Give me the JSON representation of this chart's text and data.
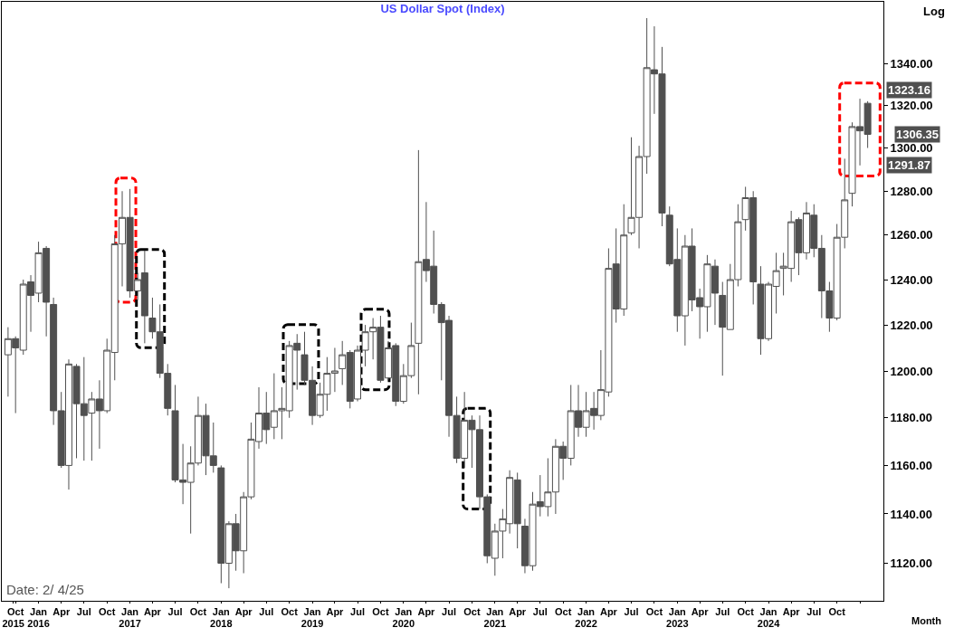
{
  "chart_data": {
    "type": "candlestick",
    "title": "US Dollar Spot (Index)",
    "xlabel": "Month",
    "ylabel": "Log",
    "color": "#505050",
    "log": true,
    "x": [
      "2015-09",
      "2015-10",
      "2015-11",
      "2015-12",
      "2016-01",
      "2016-02",
      "2016-03",
      "2016-04",
      "2016-05",
      "2016-06",
      "2016-07",
      "2016-08",
      "2016-09",
      "2016-10",
      "2016-11",
      "2016-12",
      "2017-01",
      "2017-02",
      "2017-03",
      "2017-04",
      "2017-05",
      "2017-06",
      "2017-07",
      "2017-08",
      "2017-09",
      "2017-10",
      "2017-11",
      "2017-12",
      "2018-01",
      "2018-02",
      "2018-03",
      "2018-04",
      "2018-05",
      "2018-06",
      "2018-07",
      "2018-08",
      "2018-09",
      "2018-10",
      "2018-11",
      "2018-12",
      "2019-01",
      "2019-02",
      "2019-03",
      "2019-04",
      "2019-05",
      "2019-06",
      "2019-07",
      "2019-08",
      "2019-09",
      "2019-10",
      "2019-11",
      "2019-12",
      "2020-01",
      "2020-02",
      "2020-03",
      "2020-04",
      "2020-05",
      "2020-06",
      "2020-07",
      "2020-08",
      "2020-09",
      "2020-10",
      "2020-11",
      "2020-12",
      "2021-01",
      "2021-02",
      "2021-03",
      "2021-04",
      "2021-05",
      "2021-06",
      "2021-07",
      "2021-08",
      "2021-09",
      "2021-10",
      "2021-11",
      "2021-12",
      "2022-01",
      "2022-02",
      "2022-03",
      "2022-04",
      "2022-05",
      "2022-06",
      "2022-07",
      "2022-08",
      "2022-09",
      "2022-10",
      "2022-11",
      "2022-12",
      "2023-01",
      "2023-02",
      "2023-03",
      "2023-04",
      "2023-05",
      "2023-06",
      "2023-07",
      "2023-08",
      "2023-09",
      "2023-10",
      "2023-11",
      "2023-12",
      "2024-01",
      "2024-02",
      "2024-03",
      "2024-04",
      "2024-05",
      "2024-06",
      "2024-07",
      "2024-08",
      "2024-09",
      "2024-10",
      "2024-11",
      "2024-12",
      "2025-01",
      "2025-02"
    ],
    "ohlc": [
      [
        1207,
        1219,
        1189,
        1214
      ],
      [
        1214,
        1215,
        1182,
        1210
      ],
      [
        1209,
        1240,
        1207,
        1238
      ],
      [
        1239,
        1242,
        1217,
        1233
      ],
      [
        1234,
        1257,
        1230,
        1252
      ],
      [
        1254,
        1255,
        1215,
        1230
      ],
      [
        1229,
        1232,
        1177,
        1183
      ],
      [
        1183,
        1191,
        1159,
        1160
      ],
      [
        1160,
        1205,
        1150,
        1203
      ],
      [
        1202,
        1203,
        1163,
        1186
      ],
      [
        1186,
        1206,
        1162,
        1181
      ],
      [
        1182,
        1191,
        1162,
        1188
      ],
      [
        1188,
        1196,
        1167,
        1183
      ],
      [
        1183,
        1214,
        1182,
        1209
      ],
      [
        1208,
        1260,
        1196,
        1256
      ],
      [
        1256,
        1280,
        1237,
        1268
      ],
      [
        1268,
        1281,
        1232,
        1235
      ],
      [
        1235,
        1243,
        1231,
        1240
      ],
      [
        1243,
        1253,
        1212,
        1224
      ],
      [
        1223,
        1232,
        1214,
        1217
      ],
      [
        1217,
        1229,
        1197,
        1199
      ],
      [
        1199,
        1203,
        1181,
        1184
      ],
      [
        1183,
        1194,
        1153,
        1154
      ],
      [
        1154,
        1169,
        1144,
        1153
      ],
      [
        1153,
        1168,
        1132,
        1161
      ],
      [
        1161,
        1189,
        1160,
        1181
      ],
      [
        1181,
        1186,
        1156,
        1164
      ],
      [
        1164,
        1178,
        1157,
        1160
      ],
      [
        1159,
        1160,
        1112,
        1120
      ],
      [
        1120,
        1137,
        1110,
        1136
      ],
      [
        1136,
        1140,
        1117,
        1125
      ],
      [
        1125,
        1149,
        1116,
        1147
      ],
      [
        1147,
        1178,
        1146,
        1171
      ],
      [
        1170,
        1193,
        1167,
        1182
      ],
      [
        1182,
        1191,
        1169,
        1175
      ],
      [
        1176,
        1199,
        1171,
        1183
      ],
      [
        1183,
        1193,
        1171,
        1184
      ],
      [
        1183,
        1213,
        1180,
        1211
      ],
      [
        1212,
        1216,
        1192,
        1209
      ],
      [
        1207,
        1217,
        1194,
        1196
      ],
      [
        1196,
        1202,
        1177,
        1181
      ],
      [
        1181,
        1195,
        1180,
        1190
      ],
      [
        1190,
        1206,
        1183,
        1199
      ],
      [
        1199,
        1210,
        1191,
        1200
      ],
      [
        1201,
        1213,
        1194,
        1207
      ],
      [
        1208,
        1209,
        1184,
        1187
      ],
      [
        1188,
        1211,
        1187,
        1209
      ],
      [
        1209,
        1220,
        1202,
        1217
      ],
      [
        1217,
        1223,
        1205,
        1219
      ],
      [
        1219,
        1224,
        1195,
        1196
      ],
      [
        1197,
        1213,
        1196,
        1210
      ],
      [
        1211,
        1212,
        1185,
        1187
      ],
      [
        1187,
        1203,
        1186,
        1198
      ],
      [
        1198,
        1221,
        1197,
        1211
      ],
      [
        1212,
        1299,
        1190,
        1248
      ],
      [
        1249,
        1275,
        1239,
        1244
      ],
      [
        1246,
        1262,
        1225,
        1229
      ],
      [
        1229,
        1230,
        1196,
        1221
      ],
      [
        1222,
        1224,
        1172,
        1181
      ],
      [
        1181,
        1189,
        1161,
        1163
      ],
      [
        1163,
        1191,
        1159,
        1179
      ],
      [
        1179,
        1181,
        1159,
        1175
      ],
      [
        1175,
        1181,
        1142,
        1147
      ],
      [
        1147,
        1148,
        1120,
        1123
      ],
      [
        1122,
        1136,
        1115,
        1133
      ],
      [
        1133,
        1142,
        1122,
        1138
      ],
      [
        1136,
        1158,
        1132,
        1155
      ],
      [
        1154,
        1157,
        1126,
        1136
      ],
      [
        1135,
        1138,
        1116,
        1119
      ],
      [
        1119,
        1149,
        1117,
        1144
      ],
      [
        1145,
        1156,
        1139,
        1143
      ],
      [
        1143,
        1163,
        1139,
        1149
      ],
      [
        1149,
        1171,
        1140,
        1168
      ],
      [
        1168,
        1170,
        1154,
        1163
      ],
      [
        1163,
        1194,
        1160,
        1183
      ],
      [
        1183,
        1194,
        1172,
        1176
      ],
      [
        1176,
        1191,
        1172,
        1183
      ],
      [
        1184,
        1191,
        1175,
        1181
      ],
      [
        1181,
        1209,
        1179,
        1192
      ],
      [
        1191,
        1254,
        1189,
        1245
      ],
      [
        1247,
        1263,
        1221,
        1227
      ],
      [
        1227,
        1274,
        1224,
        1260
      ],
      [
        1261,
        1305,
        1260,
        1268
      ],
      [
        1268,
        1301,
        1254,
        1296
      ],
      [
        1296,
        1362,
        1288,
        1338
      ],
      [
        1337,
        1358,
        1316,
        1335
      ],
      [
        1335,
        1348,
        1264,
        1270
      ],
      [
        1269,
        1273,
        1246,
        1247
      ],
      [
        1249,
        1263,
        1217,
        1224
      ],
      [
        1224,
        1260,
        1211,
        1255
      ],
      [
        1255,
        1263,
        1226,
        1231
      ],
      [
        1232,
        1236,
        1214,
        1228
      ],
      [
        1228,
        1251,
        1217,
        1247
      ],
      [
        1246,
        1249,
        1220,
        1234
      ],
      [
        1233,
        1239,
        1198,
        1219
      ],
      [
        1218,
        1247,
        1218,
        1240
      ],
      [
        1240,
        1274,
        1237,
        1266
      ],
      [
        1267,
        1282,
        1262,
        1277
      ],
      [
        1277,
        1280,
        1229,
        1239
      ],
      [
        1238,
        1246,
        1207,
        1214
      ],
      [
        1214,
        1239,
        1213,
        1238
      ],
      [
        1237,
        1252,
        1225,
        1244
      ],
      [
        1245,
        1252,
        1233,
        1246
      ],
      [
        1245,
        1271,
        1239,
        1266
      ],
      [
        1267,
        1268,
        1242,
        1252
      ],
      [
        1252,
        1275,
        1249,
        1270
      ],
      [
        1269,
        1274,
        1250,
        1254
      ],
      [
        1254,
        1260,
        1223,
        1235
      ],
      [
        1235,
        1239,
        1217,
        1223
      ],
      [
        1223,
        1265,
        1222,
        1259
      ],
      [
        1259,
        1295,
        1254,
        1276
      ],
      [
        1279,
        1312,
        1273,
        1310
      ],
      [
        1310,
        1323.16,
        1291.87,
        1308
      ],
      [
        1321,
        1322,
        1300,
        1306.35
      ]
    ],
    "xlim": [
      "2015-08-07",
      "2025-04-05"
    ],
    "ylim": [
      1105,
      1370
    ],
    "xticks": [
      {
        "value": "2015-10",
        "label": "Oct"
      },
      {
        "value": "2016-01",
        "label": "Jan"
      },
      {
        "value": "2016-04",
        "label": "Apr"
      },
      {
        "value": "2016-07",
        "label": "Jul"
      },
      {
        "value": "2016-10",
        "label": "Oct"
      },
      {
        "value": "2017-01",
        "label": "Jan"
      },
      {
        "value": "2017-04",
        "label": "Apr"
      },
      {
        "value": "2017-07",
        "label": "Jul"
      },
      {
        "value": "2017-10",
        "label": "Oct"
      },
      {
        "value": "2018-01",
        "label": "Jan"
      },
      {
        "value": "2018-04",
        "label": "Apr"
      },
      {
        "value": "2018-07",
        "label": "Jul"
      },
      {
        "value": "2018-10",
        "label": "Oct"
      },
      {
        "value": "2019-01",
        "label": "Jan"
      },
      {
        "value": "2019-04",
        "label": "Apr"
      },
      {
        "value": "2019-07",
        "label": "Jul"
      },
      {
        "value": "2019-10",
        "label": "Oct"
      },
      {
        "value": "2020-01",
        "label": "Jan"
      },
      {
        "value": "2020-04",
        "label": "Apr"
      },
      {
        "value": "2020-07",
        "label": "Jul"
      },
      {
        "value": "2020-10",
        "label": "Oct"
      },
      {
        "value": "2021-01",
        "label": "Jan"
      },
      {
        "value": "2021-04",
        "label": "Apr"
      },
      {
        "value": "2021-07",
        "label": "Jul"
      },
      {
        "value": "2021-10",
        "label": "Oct"
      },
      {
        "value": "2022-01",
        "label": "Jan"
      },
      {
        "value": "2022-04",
        "label": "Apr"
      },
      {
        "value": "2022-07",
        "label": "Jul"
      },
      {
        "value": "2022-10",
        "label": "Oct"
      },
      {
        "value": "2023-01",
        "label": "Jan"
      },
      {
        "value": "2023-04",
        "label": "Apr"
      },
      {
        "value": "2023-07",
        "label": "Jul"
      },
      {
        "value": "2023-10",
        "label": "Oct"
      },
      {
        "value": "2024-01",
        "label": "Jan"
      },
      {
        "value": "2024-04",
        "label": "Apr"
      },
      {
        "value": "2024-07",
        "label": "Jul"
      },
      {
        "value": "2024-10",
        "label": "Oct"
      },
      {
        "value": "2025-01",
        "label": null
      }
    ],
    "x2lim": [
      "2015-08-07",
      "2025-04-05"
    ],
    "x2ticks": [
      {
        "value": "2015-09-22",
        "label": "2015"
      },
      {
        "value": "2016-01",
        "label": "2016"
      },
      {
        "value": "2017-01",
        "label": "2017"
      },
      {
        "value": "2018-01",
        "label": "2018"
      },
      {
        "value": "2019-01",
        "label": "2019"
      },
      {
        "value": "2020-01",
        "label": "2020"
      },
      {
        "value": "2021-01",
        "label": "2021"
      },
      {
        "value": "2022-01",
        "label": "2022"
      },
      {
        "value": "2023-01",
        "label": "2023"
      },
      {
        "value": "2024-01",
        "label": "2024"
      },
      {
        "value": "2025-01",
        "label": null
      }
    ],
    "yticks": [
      {
        "value": 1120,
        "label": "1120.00"
      },
      {
        "value": 1140,
        "label": "1140.00"
      },
      {
        "value": 1160,
        "label": "1160.00"
      },
      {
        "value": 1180,
        "label": "1180.00"
      },
      {
        "value": 1200,
        "label": "1200.00"
      },
      {
        "value": 1220,
        "label": "1220.00"
      },
      {
        "value": 1240,
        "label": "1240.00"
      },
      {
        "value": 1260,
        "label": "1260.00"
      },
      {
        "value": 1280,
        "label": "1280.00"
      },
      {
        "value": 1300,
        "label": "1300.00"
      },
      {
        "value": 1320,
        "label": "1320.00"
      },
      {
        "value": 1340,
        "label": "1340.00"
      }
    ],
    "annotations": [
      "Date: 2/ 4/25",
      {
        "text": "1323.16",
        "x": "2025-01",
        "y": 1323.16
      },
      {
        "text": "1306.35",
        "x": "2025-02",
        "y": 1306.35
      },
      {
        "text": "1291.87",
        "x": "2025-01",
        "y": 1291.87
      }
    ]
  }
}
